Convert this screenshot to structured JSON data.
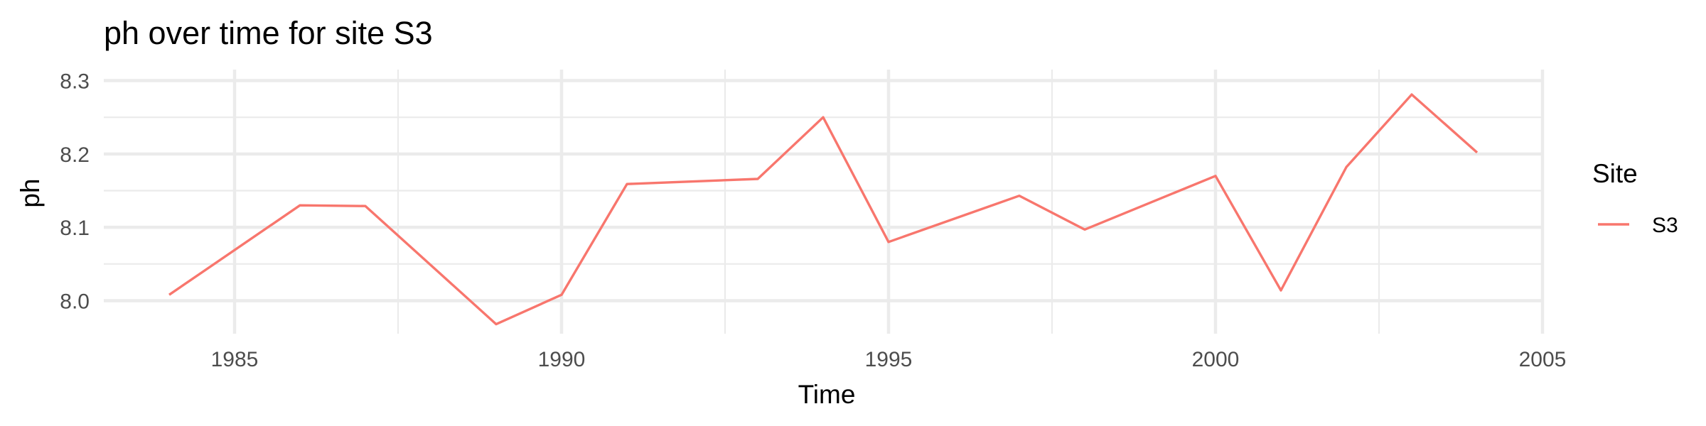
{
  "chart_data": {
    "type": "line",
    "title": "ph over time for site S3",
    "xlabel": "Time",
    "ylabel": "ph",
    "xlim": [
      1983,
      2005
    ],
    "ylim": [
      7.955,
      8.315
    ],
    "x_ticks": [
      1985,
      1990,
      1995,
      2000,
      2005
    ],
    "x_tick_labels": [
      "1985",
      "1990",
      "1995",
      "2000",
      "2005"
    ],
    "y_ticks": [
      8.0,
      8.1,
      8.2,
      8.3
    ],
    "y_tick_labels": [
      "8.0",
      "8.1",
      "8.2",
      "8.3"
    ],
    "grid": true,
    "legend": {
      "title": "Site",
      "position": "right",
      "entries": [
        "S3"
      ]
    },
    "series": [
      {
        "name": "S3",
        "color": "#F8766D",
        "x": [
          1984,
          1986,
          1987,
          1989,
          1990,
          1991,
          1993,
          1994,
          1995,
          1997,
          1998,
          2000,
          2001,
          2002,
          2003,
          2004
        ],
        "y": [
          8.008,
          8.13,
          8.129,
          7.968,
          8.008,
          8.159,
          8.166,
          8.25,
          8.08,
          8.143,
          8.097,
          8.17,
          8.014,
          8.182,
          8.281,
          8.202
        ]
      }
    ]
  }
}
